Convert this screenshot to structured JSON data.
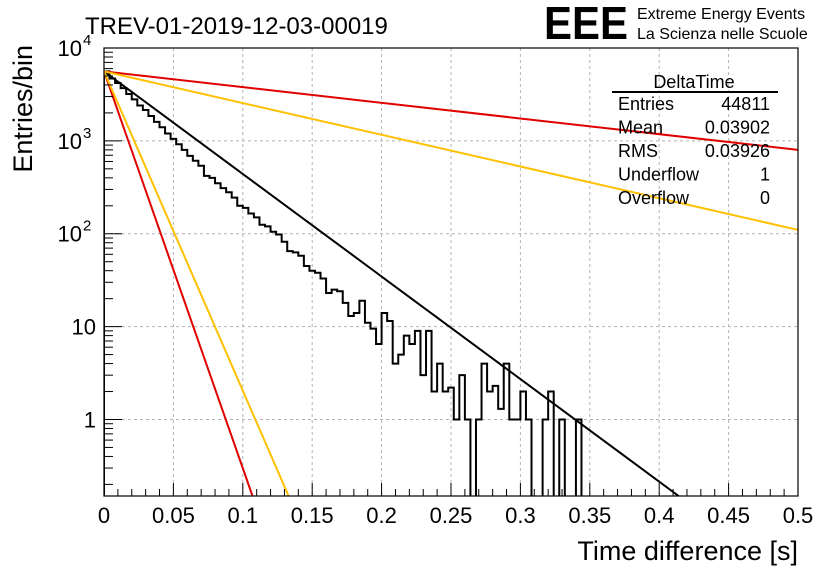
{
  "chart_data": {
    "type": "histogram",
    "title": "TREV-01-2019-12-03-00019",
    "xlabel": "Time difference [s]",
    "ylabel": "Entries/bin",
    "x_range": [
      0,
      0.5
    ],
    "y_range": [
      0.15,
      10000
    ],
    "y_scale": "log",
    "grid": true,
    "x_ticks": [
      "0",
      "0.05",
      "0.1",
      "0.15",
      "0.2",
      "0.25",
      "0.3",
      "0.35",
      "0.4",
      "0.45",
      "0.5"
    ],
    "y_ticks": [
      {
        "value": 10000,
        "base": "10",
        "exp": "4"
      },
      {
        "value": 1000,
        "base": "10",
        "exp": "3"
      },
      {
        "value": 100,
        "base": "10",
        "exp": "2"
      },
      {
        "value": 10,
        "base": "10",
        "exp": ""
      },
      {
        "value": 1,
        "base": "1",
        "exp": ""
      }
    ],
    "histogram": {
      "bin_width": 0.004,
      "color": "#000000",
      "values": [
        5600,
        4700,
        4200,
        3700,
        3200,
        2800,
        2400,
        2150,
        1850,
        1600,
        1400,
        1200,
        1050,
        920,
        800,
        690,
        610,
        540,
        420,
        400,
        350,
        310,
        280,
        245,
        200,
        190,
        165,
        150,
        125,
        120,
        105,
        98,
        82,
        65,
        63,
        58,
        45,
        40,
        38,
        33,
        23,
        25,
        24,
        18,
        13,
        14,
        19,
        11,
        9.5,
        6.5,
        14,
        11.5,
        4,
        5,
        8,
        6.5,
        9,
        3,
        9,
        2,
        4,
        2,
        2.2,
        1,
        3,
        1,
        0.1,
        1,
        4,
        2,
        2.3,
        1.3,
        4,
        1,
        1,
        2,
        1,
        0.1,
        0.1,
        1,
        2,
        0.1,
        1,
        0.1,
        0.1,
        1,
        0.1,
        0.1,
        0.1,
        0.1,
        0.1,
        0.1,
        0.1,
        0.1,
        0.1,
        0.1,
        0.1,
        0.1,
        0.1,
        0.1,
        0.1,
        0.1,
        0.1,
        0.1,
        0.1,
        0.1,
        0.1,
        0.1,
        0.1,
        0.1,
        0.1,
        0.1,
        0.1,
        0.1,
        0.1,
        0.1,
        0.1,
        0.1,
        0.1,
        0.1,
        0.1,
        0.1,
        0.1,
        0.1,
        0.1
      ]
    },
    "fit_lines": [
      {
        "color": "#000000",
        "points": [
          [
            0,
            5600
          ],
          [
            0.414,
            0.15
          ]
        ]
      },
      {
        "color": "#e00000",
        "points": [
          [
            0,
            5600
          ],
          [
            0.5,
            800
          ]
        ]
      },
      {
        "color": "#ffc000",
        "points": [
          [
            0,
            5600
          ],
          [
            0.5,
            110
          ]
        ]
      },
      {
        "color": "#e00000",
        "points": [
          [
            0,
            5600
          ],
          [
            0.107,
            0.15
          ]
        ]
      },
      {
        "color": "#ffc000",
        "points": [
          [
            0,
            5600
          ],
          [
            0.133,
            0.15
          ]
        ]
      }
    ],
    "stats_box": {
      "title": "DeltaTime",
      "rows": [
        {
          "label": "Entries",
          "value": "44811"
        },
        {
          "label": "Mean",
          "value": "0.03902"
        },
        {
          "label": "RMS",
          "value": "0.03926"
        },
        {
          "label": "Underflow",
          "value": "1"
        },
        {
          "label": "Overflow",
          "value": "0"
        }
      ]
    },
    "logo": {
      "text": "EEE",
      "line1": "Extreme Energy Events",
      "line2": "La Scienza nelle Scuole",
      "color": "#1010e0"
    }
  }
}
